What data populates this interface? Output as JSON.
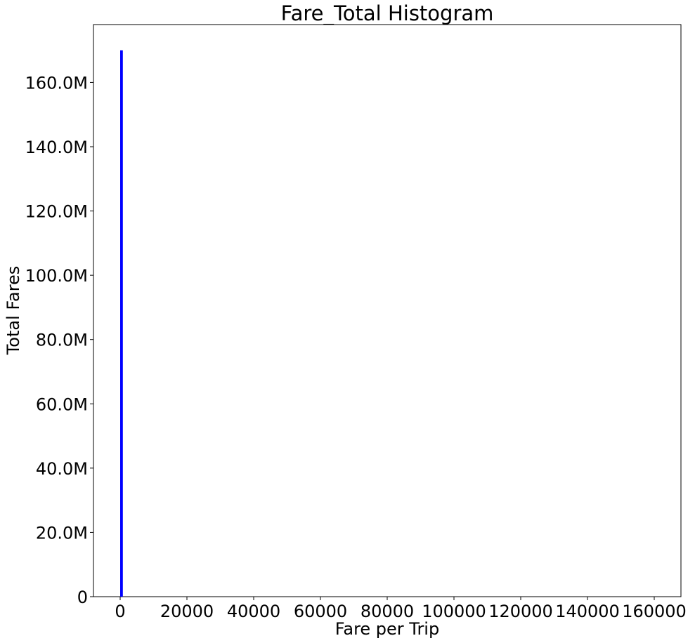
{
  "chart_data": {
    "type": "bar",
    "title": "Fare_Total Histogram",
    "xlabel": "Fare per Trip",
    "ylabel": "Total Fares",
    "xlim": [
      -8000,
      168000
    ],
    "ylim": [
      0,
      178000000
    ],
    "x_ticks": [
      0,
      20000,
      40000,
      60000,
      80000,
      100000,
      120000,
      140000,
      160000
    ],
    "x_tick_labels": [
      "0",
      "20000",
      "40000",
      "60000",
      "80000",
      "100000",
      "120000",
      "140000",
      "160000"
    ],
    "y_ticks": [
      0,
      20000000,
      40000000,
      60000000,
      80000000,
      100000000,
      120000000,
      140000000,
      160000000
    ],
    "y_tick_labels": [
      "0",
      "20.0M",
      "40.0M",
      "60.0M",
      "80.0M",
      "100.0M",
      "120.0M",
      "140.0M",
      "160.0M"
    ],
    "bins": [
      {
        "x0": 0,
        "x1": 800,
        "value": 170000000
      }
    ],
    "color": "#0000ff",
    "grid": false
  }
}
